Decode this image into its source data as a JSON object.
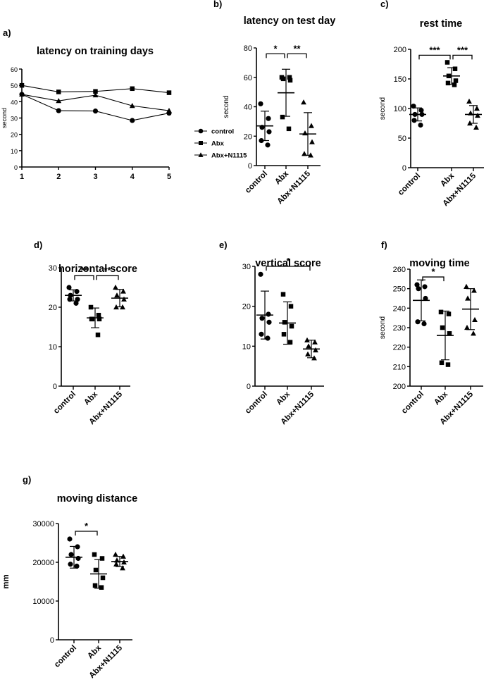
{
  "chart_data": [
    {
      "id": "a",
      "letter": "a)",
      "type": "line",
      "title": "latency on training days",
      "ylabel": "second",
      "x": [
        1,
        2,
        3,
        4,
        5
      ],
      "ylim": [
        0,
        60
      ],
      "yticks": [
        0,
        10,
        20,
        30,
        40,
        50,
        60
      ],
      "series": [
        {
          "name": "control",
          "marker": "circle",
          "values": [
            44.5,
            34.5,
            34.3,
            28.5,
            33.0
          ]
        },
        {
          "name": "Abx",
          "marker": "square",
          "values": [
            50.0,
            46.0,
            46.3,
            48.0,
            45.5
          ]
        },
        {
          "name": "Abx+N1115",
          "marker": "triangle",
          "values": [
            44.5,
            40.5,
            44.0,
            37.5,
            34.5
          ]
        }
      ]
    },
    {
      "id": "b",
      "letter": "b)",
      "type": "scatter",
      "title": "latency on test day",
      "ylabel": "second",
      "ylim": [
        0,
        80
      ],
      "yticks": [
        0,
        20,
        40,
        60,
        80
      ],
      "categories": [
        "control",
        "Abx",
        "Abx+N1115"
      ],
      "groups": [
        {
          "name": "control",
          "marker": "circle",
          "mean": 27,
          "sd": 10,
          "points": [
            42,
            32,
            26,
            23,
            17,
            14
          ]
        },
        {
          "name": "Abx",
          "marker": "square",
          "mean": 49.5,
          "sd": 16,
          "points": [
            60,
            60,
            59,
            58,
            33,
            25
          ]
        },
        {
          "name": "Abx+N1115",
          "marker": "triangle",
          "mean": 21.5,
          "sd": 14.5,
          "points": [
            43,
            27,
            22,
            16,
            8,
            7
          ]
        }
      ],
      "annotations": [
        {
          "from": 0,
          "to": 1,
          "label": "*",
          "level": 76
        },
        {
          "from": 1,
          "to": 2,
          "label": "**",
          "level": 76
        }
      ]
    },
    {
      "id": "c",
      "letter": "c)",
      "type": "scatter",
      "title": "rest time",
      "ylabel": "second",
      "ylim": [
        0,
        200
      ],
      "yticks": [
        0,
        50,
        100,
        150,
        200
      ],
      "categories": [
        "control",
        "Abx",
        "Abx+N1115"
      ],
      "groups": [
        {
          "name": "control",
          "marker": "circle",
          "mean": 90,
          "sd": 11,
          "points": [
            104,
            97,
            90,
            90,
            80,
            72
          ]
        },
        {
          "name": "Abx",
          "marker": "square",
          "mean": 155,
          "sd": 14,
          "points": [
            178,
            167,
            155,
            147,
            143,
            140
          ]
        },
        {
          "name": "Abx+N1115",
          "marker": "triangle",
          "mean": 90,
          "sd": 15,
          "points": [
            112,
            100,
            92,
            88,
            75,
            68
          ]
        }
      ],
      "annotations": [
        {
          "from": 0,
          "to": 1,
          "label": "***",
          "level": 190
        },
        {
          "from": 1,
          "to": 2,
          "label": "***",
          "level": 190
        }
      ]
    },
    {
      "id": "d",
      "letter": "d)",
      "type": "scatter",
      "title": "horizontal score",
      "ylabel": "",
      "ylim": [
        0,
        30
      ],
      "yticks": [
        0,
        10,
        20,
        30
      ],
      "categories": [
        "control",
        "Abx",
        "Abx+N1115"
      ],
      "groups": [
        {
          "name": "control",
          "marker": "circle",
          "mean": 23,
          "sd": 1.4,
          "points": [
            25,
            24,
            23,
            22,
            22,
            21
          ]
        },
        {
          "name": "Abx",
          "marker": "square",
          "mean": 17.3,
          "sd": 2.5,
          "points": [
            20,
            18,
            17,
            17,
            17,
            13
          ]
        },
        {
          "name": "Abx+N1115",
          "marker": "triangle",
          "mean": 22.3,
          "sd": 2.2,
          "points": [
            25,
            24,
            23,
            22,
            20,
            20
          ]
        }
      ],
      "annotations": [
        {
          "from": 0,
          "to": 1,
          "label": "**",
          "level": 28
        },
        {
          "from": 1,
          "to": 2,
          "label": "**",
          "level": 28
        }
      ]
    },
    {
      "id": "e",
      "letter": "e)",
      "type": "scatter",
      "title": "vertical score",
      "ylabel": "",
      "ylim": [
        0,
        30
      ],
      "yticks": [
        0,
        10,
        20,
        30
      ],
      "categories": [
        "control",
        "Abx",
        "Abx+N1115"
      ],
      "groups": [
        {
          "name": "control",
          "marker": "circle",
          "mean": 17.8,
          "sd": 6,
          "points": [
            28,
            18,
            17,
            16,
            13,
            12
          ]
        },
        {
          "name": "Abx",
          "marker": "square",
          "mean": 15.8,
          "sd": 5.3,
          "points": [
            23,
            20,
            16,
            15,
            13,
            11
          ]
        },
        {
          "name": "Abx+N1115",
          "marker": "triangle",
          "mean": 9.3,
          "sd": 2.2,
          "points": [
            11.5,
            11,
            10,
            9,
            8,
            7
          ]
        }
      ],
      "annotations": [
        {
          "from": 0,
          "to": 2,
          "label": "*",
          "level": 30
        }
      ]
    },
    {
      "id": "f",
      "letter": "f)",
      "type": "scatter",
      "title": "moving time",
      "ylabel": "second",
      "ylim": [
        200,
        260
      ],
      "yticks": [
        200,
        210,
        220,
        230,
        240,
        250,
        260
      ],
      "categories": [
        "control",
        "Abx",
        "Abx+N1115"
      ],
      "groups": [
        {
          "name": "control",
          "marker": "circle",
          "mean": 244,
          "sd": 10.5,
          "points": [
            252,
            251,
            250,
            245,
            233,
            232
          ]
        },
        {
          "name": "Abx",
          "marker": "square",
          "mean": 226,
          "sd": 12.5,
          "points": [
            238,
            237,
            230,
            227,
            212,
            211
          ]
        },
        {
          "name": "Abx+N1115",
          "marker": "triangle",
          "mean": 239.5,
          "sd": 10.5,
          "points": [
            251,
            249,
            245,
            234,
            230,
            227
          ]
        }
      ],
      "annotations": [
        {
          "from": 0,
          "to": 1,
          "label": "*",
          "level": 256
        }
      ]
    },
    {
      "id": "g",
      "letter": "g)",
      "type": "scatter",
      "title": "moving distance",
      "ylabel": "mm",
      "ylim": [
        0,
        30000
      ],
      "yticks": [
        0,
        10000,
        20000,
        30000
      ],
      "categories": [
        "control",
        "Abx",
        "Abx+N1115"
      ],
      "groups": [
        {
          "name": "control",
          "marker": "circle",
          "mean": 21300,
          "sd": 2800,
          "points": [
            26000,
            24000,
            22000,
            21000,
            19500,
            19000
          ]
        },
        {
          "name": "Abx",
          "marker": "square",
          "mean": 17000,
          "sd": 3700,
          "points": [
            22000,
            21000,
            18000,
            16000,
            14000,
            13500
          ]
        },
        {
          "name": "Abx+N1115",
          "marker": "triangle",
          "mean": 20200,
          "sd": 1300,
          "points": [
            22000,
            21500,
            20500,
            20000,
            19500,
            18500
          ]
        }
      ],
      "annotations": [
        {
          "from": 0,
          "to": 1,
          "label": "*",
          "level": 28000
        }
      ]
    }
  ]
}
